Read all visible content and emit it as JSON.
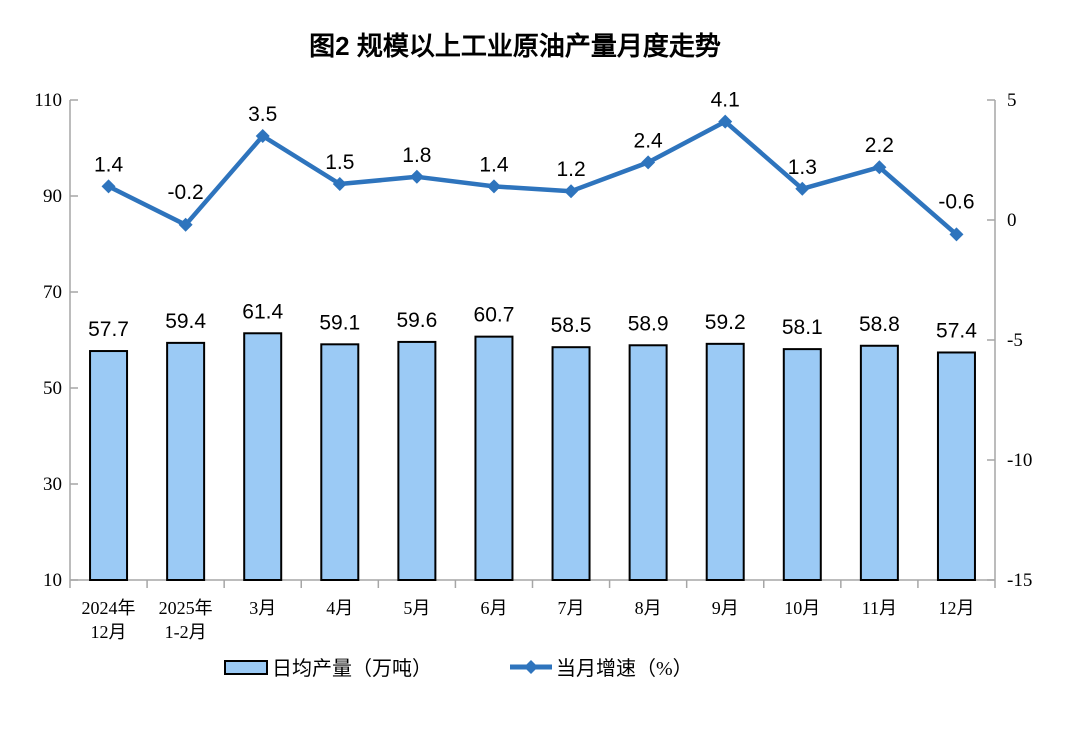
{
  "title": "图2 规模以上工业原油产量月度走势",
  "chart_data": {
    "type": "combo_bar_line",
    "categories": [
      [
        "2024年",
        "12月"
      ],
      [
        "2025年",
        "1-2月"
      ],
      [
        "3月"
      ],
      [
        "4月"
      ],
      [
        "5月"
      ],
      [
        "6月"
      ],
      [
        "7月"
      ],
      [
        "8月"
      ],
      [
        "9月"
      ],
      [
        "10月"
      ],
      [
        "11月"
      ],
      [
        "12月"
      ]
    ],
    "series": [
      {
        "name": "日均产量（万吨）",
        "type": "bar",
        "axis": "left",
        "values": [
          57.7,
          59.4,
          61.4,
          59.1,
          59.6,
          60.7,
          58.5,
          58.9,
          59.2,
          58.1,
          58.8,
          57.4
        ],
        "fill": "#9BCAF5",
        "stroke": "#000000"
      },
      {
        "name": "当月增速（%）",
        "type": "line",
        "axis": "right",
        "values": [
          1.4,
          -0.2,
          3.5,
          1.5,
          1.8,
          1.4,
          1.2,
          2.4,
          4.1,
          1.3,
          2.2,
          -0.6
        ],
        "color": "#2E74BD"
      }
    ],
    "left_axis": {
      "min": 10,
      "max": 110,
      "ticks": [
        110,
        90,
        70,
        50,
        30,
        10
      ]
    },
    "right_axis": {
      "min": -15,
      "max": 5,
      "ticks": [
        5,
        0,
        -5,
        -10,
        -15
      ]
    },
    "axis_color": "#A6A6A6",
    "grid": false,
    "legend_position": "bottom"
  }
}
